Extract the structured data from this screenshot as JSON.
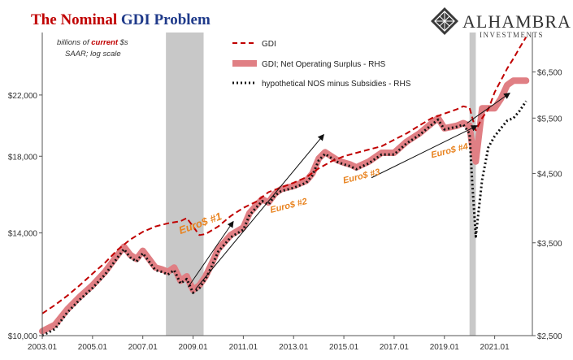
{
  "title": {
    "part1": "The ",
    "part2": "Nominal",
    "part3": " GDI Problem",
    "part1_color": "#c00000",
    "part2_color": "#c00000",
    "part3_color": "#1f3a8a"
  },
  "logo": {
    "name": "ALHAMBRA",
    "sub": "INVESTMENTS",
    "icon": "diamond-lattice-icon"
  },
  "units_note": {
    "line1_a": "billions of ",
    "line1_b": "current",
    "line1_c": " $s",
    "line2": "SAAR; log scale"
  },
  "annotations": [
    {
      "text": "Euro$ #1",
      "x": 2008.5,
      "y": 3610,
      "rotate": -20,
      "size": 13
    },
    {
      "text": "Euro$ #2",
      "x": 2012.1,
      "y": 3900,
      "rotate": -14,
      "size": 11
    },
    {
      "text": "Euro$ #3",
      "x": 2015.0,
      "y": 4340,
      "rotate": -14,
      "size": 11
    },
    {
      "text": "Euro$ #4",
      "x": 2018.5,
      "y": 4760,
      "rotate": -14,
      "size": 11
    }
  ],
  "arrows": [
    {
      "x0": 2008.8,
      "y0": 2980,
      "x1": 2010.6,
      "y1": 3780
    },
    {
      "x0": 2009.1,
      "y0": 2960,
      "x1": 2014.2,
      "y1": 5180
    },
    {
      "x0": 2016.1,
      "y0": 4430,
      "x1": 2020.3,
      "y1": 5350
    },
    {
      "x0": 2019.9,
      "y0": 5400,
      "x1": 2021.6,
      "y1": 6020
    }
  ],
  "chart_data": {
    "type": "line",
    "x_range": [
      2003.0,
      2022.5
    ],
    "x_ticks": [
      "2003.01",
      "2005.01",
      "2007.01",
      "2009.01",
      "2011.01",
      "2013.01",
      "2015.01",
      "2017.01",
      "2019.01",
      "2021.01"
    ],
    "x_tick_values": [
      2003,
      2005,
      2007,
      2009,
      2011,
      2013,
      2015,
      2017,
      2019,
      2021
    ],
    "recessions": [
      [
        2007.92,
        2009.42
      ],
      [
        2020.0,
        2020.25
      ]
    ],
    "y_left": {
      "scale": "log",
      "range": [
        10000,
        27000
      ],
      "ticks": [
        "$10,000",
        "$14,000",
        "$18,000",
        "$22,000"
      ],
      "tick_values": [
        10000,
        14000,
        18000,
        22000
      ]
    },
    "y_right": {
      "scale": "log",
      "range": [
        2500,
        7500
      ],
      "ticks": [
        "$2,500",
        "$3,500",
        "$4,500",
        "$5,500",
        "$6,500"
      ],
      "tick_values": [
        2500,
        3500,
        4500,
        5500,
        6500
      ]
    },
    "legend": [
      "GDI",
      "GDI; Net Operating Surplus - RHS",
      "hypothetical NOS minus Subsidies - RHS"
    ],
    "series": [
      {
        "name": "GDI",
        "axis": "left",
        "color": "#c00000",
        "style": "dashed",
        "x": [
          2003.0,
          2003.5,
          2004.0,
          2004.5,
          2005.0,
          2005.5,
          2006.0,
          2006.5,
          2007.0,
          2007.5,
          2008.0,
          2008.5,
          2008.75,
          2009.0,
          2009.25,
          2009.5,
          2010.0,
          2010.5,
          2011.0,
          2011.5,
          2012.0,
          2012.5,
          2013.0,
          2013.5,
          2014.0,
          2014.5,
          2015.0,
          2015.5,
          2016.0,
          2016.5,
          2017.0,
          2017.5,
          2018.0,
          2018.5,
          2019.0,
          2019.5,
          2019.75,
          2020.0,
          2020.25,
          2020.5,
          2020.75,
          2021.0,
          2021.5,
          2021.75,
          2022.0,
          2022.25
        ],
        "y": [
          10750,
          11050,
          11400,
          11800,
          12250,
          12700,
          13250,
          13700,
          14050,
          14300,
          14450,
          14550,
          14700,
          14300,
          13900,
          13950,
          14300,
          14800,
          15200,
          15500,
          16000,
          16250,
          16500,
          16800,
          17300,
          17700,
          18000,
          18200,
          18400,
          18600,
          19000,
          19400,
          19900,
          20400,
          20700,
          21000,
          21200,
          21100,
          19600,
          20400,
          21000,
          22200,
          24000,
          24800,
          25700,
          26600
        ]
      },
      {
        "name": "GDI; Net Operating Surplus - RHS",
        "axis": "right",
        "color": "#e07f84",
        "style": "thick",
        "x": [
          2003.0,
          2003.5,
          2004.0,
          2004.5,
          2005.0,
          2005.5,
          2006.0,
          2006.25,
          2006.5,
          2006.75,
          2007.0,
          2007.25,
          2007.5,
          2007.75,
          2008.0,
          2008.25,
          2008.5,
          2008.75,
          2009.0,
          2009.25,
          2009.5,
          2009.75,
          2010.0,
          2010.5,
          2011.0,
          2011.25,
          2011.5,
          2011.75,
          2012.0,
          2012.25,
          2012.5,
          2013.0,
          2013.5,
          2013.75,
          2014.0,
          2014.25,
          2014.5,
          2014.75,
          2015.0,
          2015.25,
          2015.5,
          2015.75,
          2016.0,
          2016.5,
          2017.0,
          2017.5,
          2018.0,
          2018.5,
          2018.75,
          2019.0,
          2019.5,
          2019.75,
          2020.0,
          2020.1,
          2020.25,
          2020.5,
          2020.75,
          2021.0,
          2021.25,
          2021.5,
          2021.75,
          2022.0,
          2022.25
        ],
        "y": [
          2540,
          2600,
          2750,
          2880,
          3000,
          3150,
          3350,
          3450,
          3350,
          3300,
          3400,
          3300,
          3200,
          3180,
          3150,
          3200,
          3050,
          3100,
          2950,
          3000,
          3100,
          3250,
          3420,
          3600,
          3700,
          3900,
          4000,
          4100,
          4050,
          4180,
          4250,
          4300,
          4380,
          4500,
          4750,
          4860,
          4790,
          4720,
          4680,
          4650,
          4600,
          4650,
          4700,
          4850,
          4850,
          5050,
          5200,
          5400,
          5500,
          5300,
          5350,
          5400,
          5350,
          5000,
          4700,
          5700,
          5700,
          5700,
          5900,
          6200,
          6300,
          6300,
          6300
        ]
      },
      {
        "name": "hypothetical NOS minus Subsidies - RHS",
        "axis": "right",
        "color": "#111111",
        "style": "dotted",
        "x": [
          2003.0,
          2003.5,
          2004.0,
          2004.5,
          2005.0,
          2005.5,
          2006.0,
          2006.25,
          2006.5,
          2006.75,
          2007.0,
          2007.25,
          2007.5,
          2007.75,
          2008.0,
          2008.25,
          2008.5,
          2008.75,
          2009.0,
          2009.25,
          2009.5,
          2009.75,
          2010.0,
          2010.5,
          2011.0,
          2011.25,
          2011.5,
          2011.75,
          2012.0,
          2012.25,
          2012.5,
          2013.0,
          2013.5,
          2013.75,
          2014.0,
          2014.25,
          2014.5,
          2014.75,
          2015.0,
          2015.25,
          2015.5,
          2015.75,
          2016.0,
          2016.5,
          2017.0,
          2017.5,
          2018.0,
          2018.5,
          2018.75,
          2019.0,
          2019.5,
          2019.75,
          2020.0,
          2020.1,
          2020.25,
          2020.5,
          2020.75,
          2021.0,
          2021.25,
          2021.5,
          2021.75,
          2022.0,
          2022.25
        ],
        "y": [
          2500,
          2560,
          2720,
          2850,
          2970,
          3120,
          3320,
          3420,
          3320,
          3270,
          3370,
          3270,
          3170,
          3150,
          3120,
          3170,
          3020,
          3070,
          2920,
          2970,
          3070,
          3220,
          3390,
          3570,
          3670,
          3870,
          3970,
          4070,
          4020,
          4150,
          4220,
          4270,
          4350,
          4470,
          4720,
          4830,
          4760,
          4690,
          4650,
          4620,
          4570,
          4620,
          4670,
          4820,
          4820,
          5020,
          5170,
          5370,
          5470,
          5280,
          5330,
          5370,
          5200,
          4400,
          3580,
          4400,
          4950,
          5150,
          5300,
          5450,
          5500,
          5650,
          5850
        ]
      }
    ]
  }
}
